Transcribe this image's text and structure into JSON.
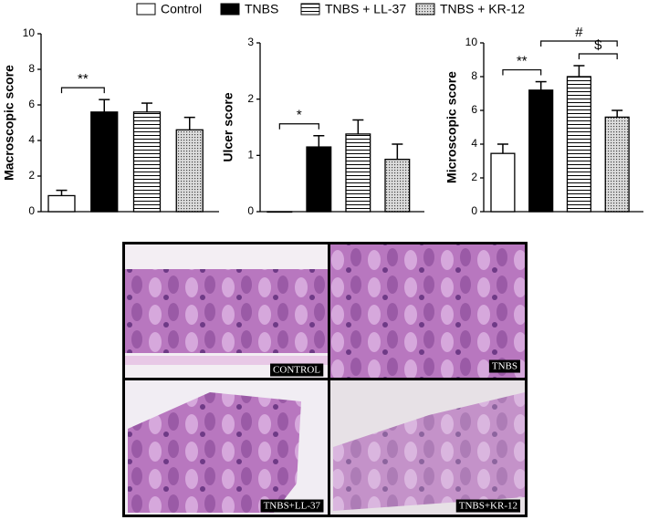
{
  "chart_data": [
    {
      "type": "bar",
      "ylabel": "Macroscopic score",
      "ylim": [
        0,
        10
      ],
      "yticks": [
        0,
        2,
        4,
        6,
        8,
        10
      ],
      "series": [
        {
          "name": "Control",
          "color": "#ffffff",
          "hatch": "none",
          "values": [
            0.9
          ],
          "errors": [
            0.3
          ]
        },
        {
          "name": "TNBS",
          "color": "#000000",
          "hatch": "none",
          "values": [
            5.6
          ],
          "errors": [
            0.7
          ]
        },
        {
          "name": "TNBS + LL-37",
          "color": "#ffffff",
          "hatch": "horizontal-lines",
          "values": [
            5.6
          ],
          "errors": [
            0.5
          ]
        },
        {
          "name": "TNBS + KR-12",
          "color": "#cfcfcf",
          "hatch": "dots",
          "values": [
            4.6
          ],
          "errors": [
            0.7
          ]
        }
      ],
      "annotations": [
        {
          "text": "**",
          "between": [
            0,
            1
          ]
        }
      ]
    },
    {
      "type": "bar",
      "ylabel": "Ulcer score",
      "ylim": [
        0,
        3
      ],
      "yticks": [
        0,
        1,
        2,
        3
      ],
      "series": [
        {
          "color": "#ffffff",
          "hatch": "none",
          "values": [
            0
          ],
          "errors": [
            0
          ]
        },
        {
          "color": "#000000",
          "hatch": "none",
          "values": [
            1.15
          ],
          "errors": [
            0.2
          ]
        },
        {
          "color": "#ffffff",
          "hatch": "horizontal-lines",
          "values": [
            1.38
          ],
          "errors": [
            0.25
          ]
        },
        {
          "color": "#8a8a8a",
          "hatch": "dots",
          "values": [
            0.93
          ],
          "errors": [
            0.27
          ]
        }
      ],
      "annotations": [
        {
          "text": "*",
          "between": [
            0,
            1
          ]
        }
      ]
    },
    {
      "type": "bar",
      "ylabel": "Microscopic score",
      "ylim": [
        0,
        10
      ],
      "yticks": [
        0,
        2,
        4,
        6,
        8,
        10
      ],
      "series": [
        {
          "color": "#ffffff",
          "hatch": "none",
          "values": [
            3.45
          ],
          "errors": [
            0.55
          ]
        },
        {
          "color": "#000000",
          "hatch": "none",
          "values": [
            7.2
          ],
          "errors": [
            0.5
          ]
        },
        {
          "color": "#ffffff",
          "hatch": "horizontal-lines",
          "values": [
            8.0
          ],
          "errors": [
            0.65
          ]
        },
        {
          "color": "#8a8a8a",
          "hatch": "dots",
          "values": [
            5.6
          ],
          "errors": [
            0.4
          ]
        }
      ],
      "annotations": [
        {
          "text": "**",
          "between": [
            0,
            1
          ]
        },
        {
          "text": "#",
          "between": [
            1,
            3
          ]
        },
        {
          "text": "$",
          "between": [
            2,
            3
          ]
        }
      ]
    }
  ],
  "images": [
    {
      "label": "CONTROL"
    },
    {
      "label": "TNBS"
    },
    {
      "label": "TNBS+LL-37"
    },
    {
      "label": "TNBS+KR-12"
    }
  ]
}
